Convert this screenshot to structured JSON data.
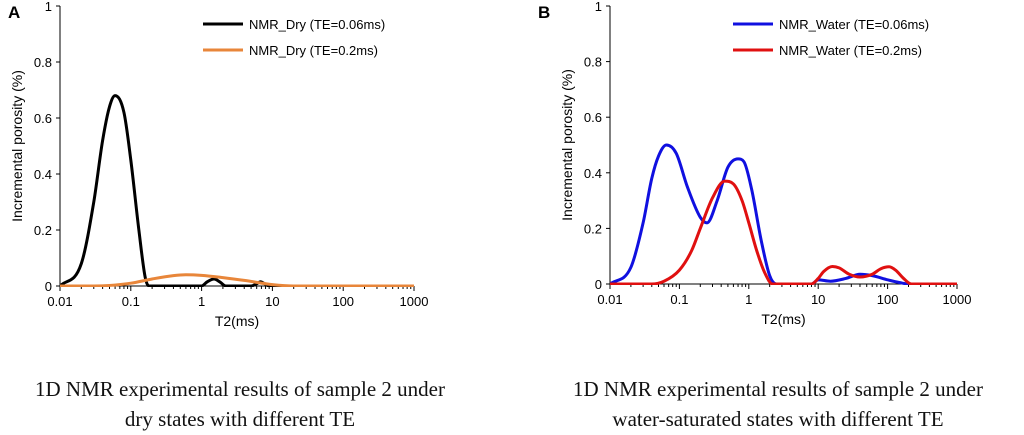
{
  "chart_data": [
    {
      "type": "line",
      "panel_label": "A",
      "xlabel": "T2(ms)",
      "ylabel": "Incremental porosity (%)",
      "xscale": "log",
      "xlim": [
        0.01,
        1000
      ],
      "ylim": [
        0,
        1
      ],
      "xticks": [
        "0.01",
        "0.1",
        "1",
        "10",
        "100",
        "1000"
      ],
      "yticks": [
        "0",
        "0.2",
        "0.4",
        "0.6",
        "0.8",
        "1"
      ],
      "legend_position": "top-right",
      "series": [
        {
          "name": "NMR_Dry (TE=0.06ms)",
          "color": "#000000",
          "x": [
            0.01,
            0.02,
            0.03,
            0.04,
            0.05,
            0.06,
            0.08,
            0.1,
            0.13,
            0.16,
            0.18,
            0.3,
            1,
            1.2,
            1.5,
            1.8,
            2.2,
            5,
            6,
            6.8,
            7.8,
            9,
            15,
            100,
            1000
          ],
          "y": [
            0,
            0.08,
            0.3,
            0.52,
            0.64,
            0.68,
            0.62,
            0.45,
            0.2,
            0.03,
            0,
            0,
            0,
            0.015,
            0.025,
            0.015,
            0,
            0,
            0.008,
            0.015,
            0.008,
            0,
            0,
            0,
            0
          ]
        },
        {
          "name": "NMR_Dry (TE=0.2ms)",
          "color": "#E8863A",
          "x": [
            0.01,
            0.03,
            0.05,
            0.1,
            0.2,
            0.4,
            0.6,
            1,
            2,
            4,
            10,
            20,
            100,
            1000
          ],
          "y": [
            0,
            0,
            0.002,
            0.01,
            0.025,
            0.037,
            0.04,
            0.038,
            0.03,
            0.02,
            0.005,
            0,
            0,
            0
          ]
        }
      ]
    },
    {
      "type": "line",
      "panel_label": "B",
      "xlabel": "T2(ms)",
      "ylabel": "Incremental porosity (%)",
      "xscale": "log",
      "xlim": [
        0.01,
        1000
      ],
      "ylim": [
        0,
        1
      ],
      "xticks": [
        "0.01",
        "0.1",
        "1",
        "10",
        "100",
        "1000"
      ],
      "yticks": [
        "0",
        "0.2",
        "0.4",
        "0.6",
        "0.8",
        "1"
      ],
      "legend_position": "top-right",
      "series": [
        {
          "name": "NMR_Water (TE=0.06ms)",
          "color": "#1010E0",
          "x": [
            0.01,
            0.02,
            0.03,
            0.04,
            0.05,
            0.065,
            0.09,
            0.13,
            0.2,
            0.25,
            0.35,
            0.5,
            0.7,
            0.85,
            1.1,
            1.5,
            2,
            2.5,
            8,
            10,
            15,
            25,
            40,
            60,
            100,
            150,
            200,
            1000
          ],
          "y": [
            0,
            0.06,
            0.22,
            0.38,
            0.46,
            0.5,
            0.47,
            0.35,
            0.24,
            0.22,
            0.3,
            0.42,
            0.45,
            0.44,
            0.34,
            0.16,
            0.03,
            0,
            0,
            0.015,
            0.01,
            0.02,
            0.035,
            0.03,
            0.015,
            0.005,
            0,
            0
          ]
        },
        {
          "name": "NMR_Water (TE=0.2ms)",
          "color": "#E01010",
          "x": [
            0.01,
            0.04,
            0.06,
            0.1,
            0.15,
            0.2,
            0.3,
            0.45,
            0.6,
            0.8,
            1,
            1.3,
            1.7,
            2.2,
            8,
            10,
            12,
            16,
            20,
            28,
            40,
            60,
            80,
            105,
            130,
            170,
            220,
            1000
          ],
          "y": [
            0,
            0,
            0.01,
            0.05,
            0.12,
            0.2,
            0.31,
            0.37,
            0.36,
            0.3,
            0.22,
            0.12,
            0.04,
            0,
            0,
            0.02,
            0.045,
            0.063,
            0.058,
            0.035,
            0.025,
            0.035,
            0.055,
            0.062,
            0.05,
            0.02,
            0,
            0
          ]
        }
      ]
    }
  ],
  "captions": {
    "a": [
      "1D NMR experimental results of sample 2 under",
      "dry states with different TE"
    ],
    "b": [
      "1D NMR experimental results of sample 2 under",
      "water-saturated states with different TE"
    ]
  }
}
